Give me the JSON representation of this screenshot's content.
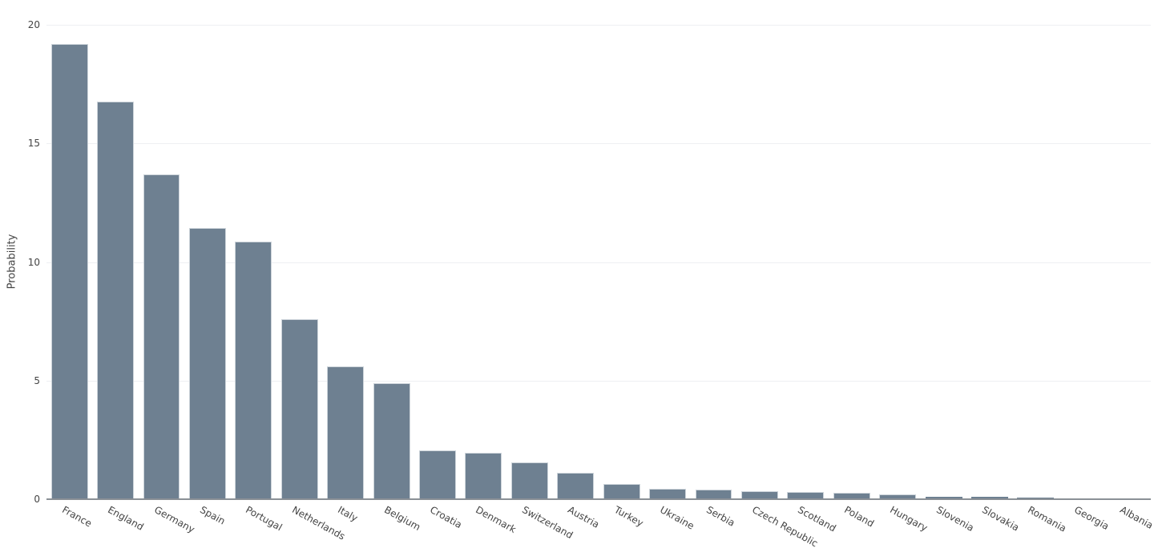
{
  "chart_data": {
    "type": "bar",
    "title": "",
    "xlabel": "",
    "ylabel": "Probability",
    "categories": [
      "France",
      "England",
      "Germany",
      "Spain",
      "Portugal",
      "Netherlands",
      "Italy",
      "Belgium",
      "Croatia",
      "Denmark",
      "Switzerland",
      "Austria",
      "Turkey",
      "Ukraine",
      "Serbia",
      "Czech Republic",
      "Scotland",
      "Poland",
      "Hungary",
      "Slovenia",
      "Slovakia",
      "Romania",
      "Georgia",
      "Albania"
    ],
    "values": [
      19.2,
      16.75,
      13.7,
      11.45,
      10.85,
      7.6,
      5.6,
      4.9,
      2.05,
      1.95,
      1.55,
      1.1,
      0.65,
      0.45,
      0.4,
      0.35,
      0.3,
      0.27,
      0.2,
      0.1,
      0.1,
      0.06,
      0.03,
      0.02
    ],
    "y_ticks": [
      0,
      5,
      10,
      15,
      20
    ],
    "ylim": [
      0,
      20
    ],
    "grid": true,
    "legend": "none",
    "x_tick_angle_deg": 29,
    "colors": {
      "bar_fill": "#6E8091",
      "bar_edge": "#CDD4DA",
      "gridline": "#EEF0F2",
      "axis_line": "#8A9096",
      "tick_label": "#444444",
      "background": "#FFFFFF"
    }
  }
}
